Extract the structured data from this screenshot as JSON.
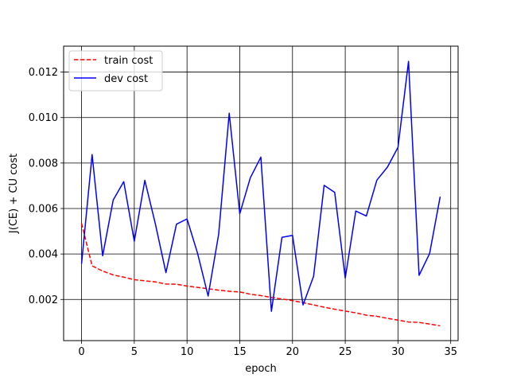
{
  "chart_data": {
    "type": "line",
    "title": "",
    "xlabel": "epoch",
    "ylabel": "J(CE) + CU cost",
    "xlim": [
      -1.7,
      35.7
    ],
    "ylim": [
      0.00019,
      0.01314
    ],
    "x_ticks": [
      0,
      5,
      10,
      15,
      20,
      25,
      30,
      35
    ],
    "x_tick_labels": [
      "0",
      "5",
      "10",
      "15",
      "20",
      "25",
      "30",
      "35"
    ],
    "y_ticks": [
      0.002,
      0.004,
      0.006,
      0.008,
      0.01,
      0.012
    ],
    "y_tick_labels": [
      "0.002",
      "0.004",
      "0.006",
      "0.008",
      "0.010",
      "0.012"
    ],
    "grid": true,
    "grid_color": "#000000",
    "legend_position": "top-left",
    "x": [
      0,
      1,
      2,
      3,
      4,
      5,
      6,
      7,
      8,
      9,
      10,
      11,
      12,
      13,
      14,
      15,
      16,
      17,
      18,
      19,
      20,
      21,
      22,
      23,
      24,
      25,
      26,
      27,
      28,
      29,
      30,
      31,
      32,
      33,
      34
    ],
    "series": [
      {
        "name": "train cost",
        "color": "#ff0000",
        "line_style": "dashed",
        "values": [
          0.00535,
          0.00348,
          0.00325,
          0.00308,
          0.00298,
          0.00287,
          0.00282,
          0.00277,
          0.00268,
          0.00267,
          0.00259,
          0.00253,
          0.00247,
          0.00241,
          0.00236,
          0.00233,
          0.00223,
          0.00217,
          0.00209,
          0.00202,
          0.00195,
          0.00186,
          0.00176,
          0.00166,
          0.00157,
          0.00149,
          0.00141,
          0.00131,
          0.00126,
          0.00117,
          0.00109,
          0.00101,
          0.00099,
          0.00092,
          0.00084
        ]
      },
      {
        "name": "dev cost",
        "color": "#0000ff",
        "line_style": "solid",
        "values": [
          0.00357,
          0.00837,
          0.00392,
          0.00637,
          0.00718,
          0.00456,
          0.00724,
          0.00532,
          0.00318,
          0.00531,
          0.00554,
          0.00403,
          0.00215,
          0.00487,
          0.01019,
          0.00577,
          0.00735,
          0.00826,
          0.00148,
          0.00473,
          0.00482,
          0.00176,
          0.00302,
          0.00702,
          0.00671,
          0.00294,
          0.00589,
          0.00567,
          0.00725,
          0.00782,
          0.00869,
          0.01247,
          0.00306,
          0.00402,
          0.00652
        ]
      }
    ]
  }
}
